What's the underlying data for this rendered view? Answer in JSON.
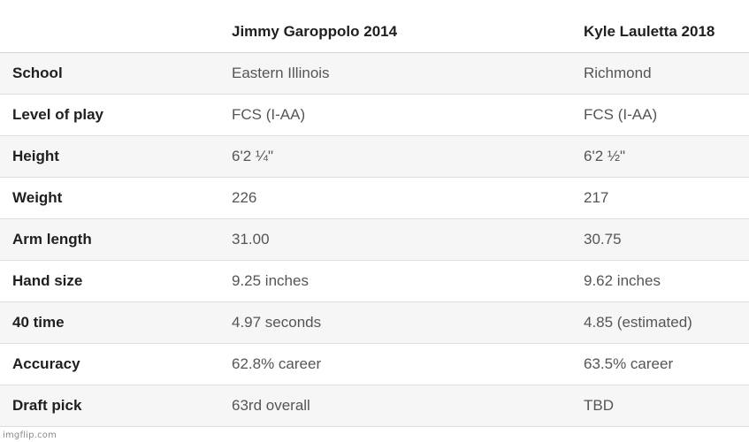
{
  "table": {
    "header": {
      "corner": "",
      "player1": "Jimmy Garoppolo 2014",
      "player2": "Kyle Lauletta 2018"
    },
    "rows": [
      {
        "label": "School",
        "p1": "Eastern Illinois",
        "p2": "Richmond"
      },
      {
        "label": "Level of play",
        "p1": "FCS (I-AA)",
        "p2": "FCS (I-AA)"
      },
      {
        "label": "Height",
        "p1": "6'2 ¼\"",
        "p2": "6'2 ½\""
      },
      {
        "label": "Weight",
        "p1": "226",
        "p2": "217"
      },
      {
        "label": "Arm length",
        "p1": "31.00",
        "p2": "30.75"
      },
      {
        "label": "Hand size",
        "p1": "9.25 inches",
        "p2": "9.62 inches"
      },
      {
        "label": "40 time",
        "p1": "4.97 seconds",
        "p2": "4.85 (estimated)"
      },
      {
        "label": "Accuracy",
        "p1": "62.8% career",
        "p2": "63.5% career"
      },
      {
        "label": "Draft pick",
        "p1": "63rd overall",
        "p2": "TBD"
      }
    ]
  },
  "watermark": "imgflip.com"
}
